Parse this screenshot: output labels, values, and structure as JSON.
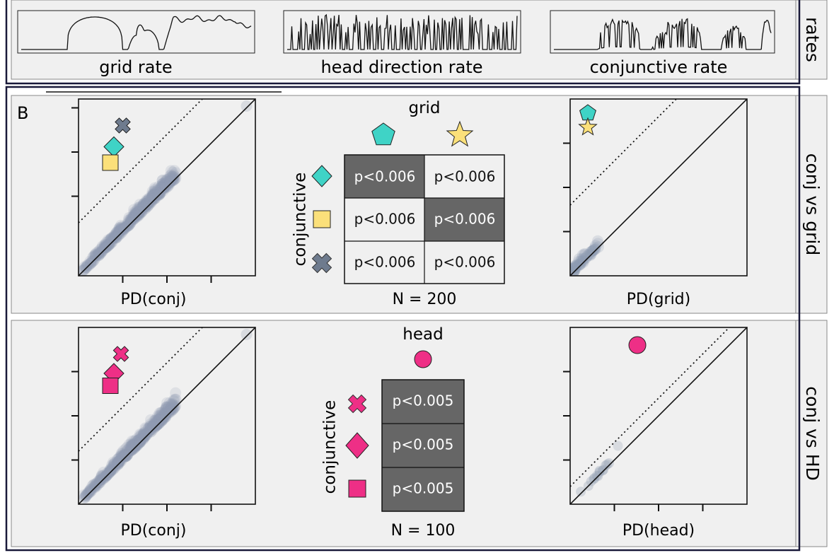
{
  "panel_a": {
    "side_label": "rates",
    "traces": [
      {
        "label": "grid rate"
      },
      {
        "label": "head direction rate"
      },
      {
        "label": "conjunctive rate"
      }
    ]
  },
  "panel_b": {
    "letter": "B",
    "rows": [
      {
        "side_label": "conj vs grid",
        "left_xlabel": "PD(conj)",
        "right_xlabel": "PD(grid)",
        "table_title": "grid",
        "table_ylabel": "conjunctive",
        "n_label": "N = 200",
        "cells": [
          [
            "p<0.006",
            "p<0.006"
          ],
          [
            "p<0.006",
            "p<0.006"
          ],
          [
            "p<0.006",
            "p<0.006"
          ]
        ]
      },
      {
        "side_label": "conj vs HD",
        "left_xlabel": "PD(conj)",
        "right_xlabel": "PD(head)",
        "table_title": "head",
        "table_ylabel": "conjunctive",
        "n_label": "N = 100",
        "cells": [
          [
            "p<0.005"
          ],
          [
            "p<0.005"
          ],
          [
            "p<0.005"
          ]
        ]
      }
    ]
  },
  "colors": {
    "teal": "#3fd3c6",
    "yellow": "#fbe07a",
    "gray_marker": "#6e7b8e",
    "pink": "#ee2f86",
    "panel_bg": "#f0f0f0",
    "dark_cell": "#666666",
    "frame": "#1a1a3a",
    "scatter": "#8f9bb0"
  },
  "chart_data": [
    {
      "type": "scatter",
      "title": "",
      "xlabel": "PD(conj)",
      "ylabel": "",
      "reference_lines": [
        "identity (solid)",
        "offset threshold (dotted)"
      ],
      "highlight_markers": [
        {
          "shape": "cross",
          "color": "#6e7b8e",
          "x": 0.25,
          "y": 0.85
        },
        {
          "shape": "diamond",
          "color": "#3fd3c6",
          "x": 0.2,
          "y": 0.73
        },
        {
          "shape": "square",
          "color": "#fbe07a",
          "x": 0.18,
          "y": 0.64
        }
      ]
    },
    {
      "type": "table",
      "title": "grid",
      "columns": [
        "pentagon",
        "star"
      ],
      "rows": [
        "diamond",
        "square",
        "cross"
      ],
      "values": [
        [
          "p<0.006",
          "p<0.006"
        ],
        [
          "p<0.006",
          "p<0.006"
        ],
        [
          "p<0.006",
          "p<0.006"
        ]
      ],
      "highlighted": [
        [
          0,
          0
        ],
        [
          1,
          1
        ]
      ],
      "n": "N = 200"
    },
    {
      "type": "scatter",
      "title": "",
      "xlabel": "PD(grid)",
      "ylabel": "",
      "reference_lines": [
        "identity (solid)",
        "offset threshold (dotted)"
      ],
      "highlight_markers": [
        {
          "shape": "pentagon",
          "color": "#3fd3c6",
          "x": 0.1,
          "y": 0.92
        },
        {
          "shape": "star",
          "color": "#fbe07a",
          "x": 0.1,
          "y": 0.84
        }
      ]
    },
    {
      "type": "scatter",
      "title": "",
      "xlabel": "PD(conj)",
      "ylabel": "",
      "reference_lines": [
        "identity (solid)",
        "offset threshold (dotted)"
      ],
      "highlight_markers": [
        {
          "shape": "cross",
          "color": "#ee2f86",
          "x": 0.24,
          "y": 0.85
        },
        {
          "shape": "diamond",
          "color": "#ee2f86",
          "x": 0.2,
          "y": 0.74
        },
        {
          "shape": "square",
          "color": "#ee2f86",
          "x": 0.18,
          "y": 0.67
        }
      ]
    },
    {
      "type": "table",
      "title": "head",
      "columns": [
        "circle"
      ],
      "rows": [
        "cross",
        "diamond",
        "square"
      ],
      "values": [
        [
          "p<0.005"
        ],
        [
          "p<0.005"
        ],
        [
          "p<0.005"
        ]
      ],
      "highlighted": [
        [
          0,
          0
        ],
        [
          1,
          0
        ],
        [
          2,
          0
        ]
      ],
      "n": "N = 100"
    },
    {
      "type": "scatter",
      "title": "",
      "xlabel": "PD(head)",
      "ylabel": "",
      "reference_lines": [
        "identity (solid)",
        "offset threshold (dotted)"
      ],
      "highlight_markers": [
        {
          "shape": "circle",
          "color": "#ee2f86",
          "x": 0.38,
          "y": 0.9
        }
      ]
    }
  ]
}
